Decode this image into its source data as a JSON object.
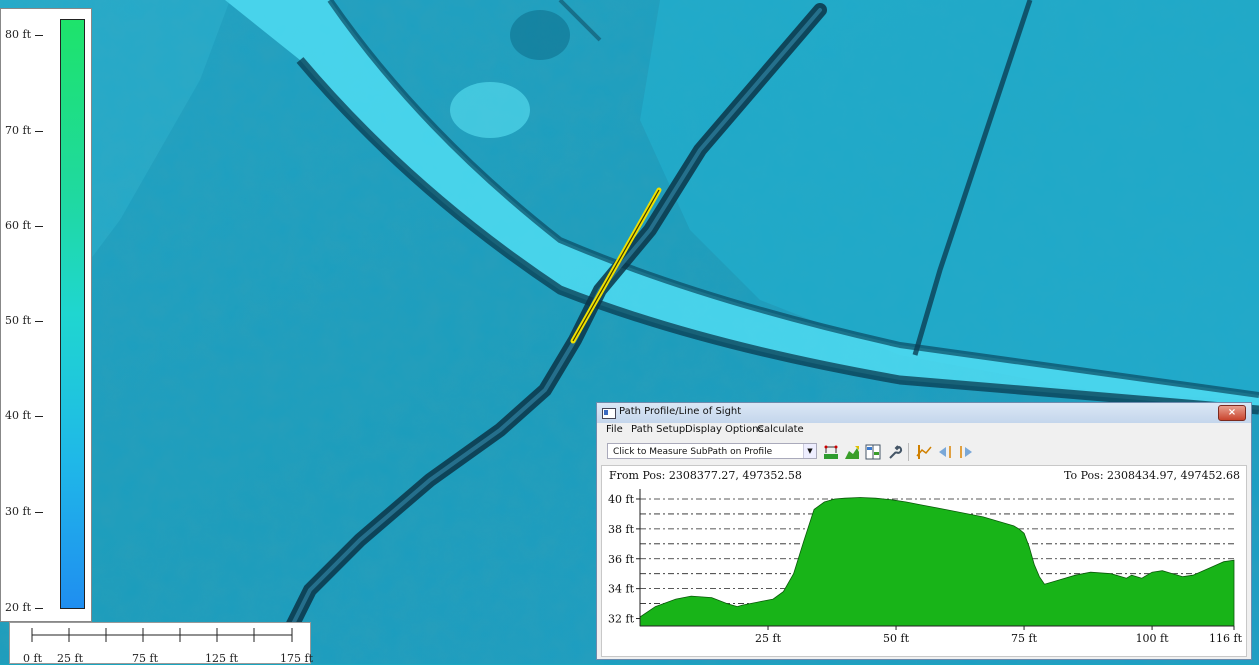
{
  "legend": {
    "ticks": [
      "80 ft",
      "70 ft",
      "60 ft",
      "50 ft",
      "40 ft",
      "30 ft",
      "20 ft"
    ]
  },
  "scale": {
    "labels": [
      "0 ft",
      "25 ft",
      "75 ft",
      "125 ft",
      "175 ft"
    ]
  },
  "window": {
    "title": "Path Profile/Line of Sight",
    "close_icon": "×",
    "menu": [
      "File",
      "Path Setup",
      "Display Options",
      "Calculate"
    ],
    "combo_value": "Click to Measure SubPath on Profile",
    "toolbar_icons": [
      "path-setup-icon",
      "terrain-icon",
      "columns-icon",
      "wrench-icon",
      "profile-marker-icon",
      "move-left-icon",
      "move-right-icon"
    ],
    "from_pos": "From Pos: 2308377.27, 497352.58",
    "to_pos": "To Pos: 2308434.97, 497452.68"
  },
  "chart_data": {
    "type": "area",
    "ylim": [
      31.5,
      40.4
    ],
    "xlim": [
      0,
      116
    ],
    "y_ticks": [
      "32 ft",
      "34 ft",
      "36 ft",
      "38 ft",
      "40 ft"
    ],
    "y_tick_values": [
      32,
      34,
      36,
      38,
      40
    ],
    "x_ticks": [
      "25 ft",
      "50 ft",
      "75 ft",
      "100 ft",
      "116 ft"
    ],
    "x_tick_values": [
      25,
      50,
      75,
      100,
      116
    ],
    "grid": true,
    "fill_color": "#18b418",
    "x": [
      0,
      3,
      7,
      10,
      14,
      17,
      19,
      20,
      23,
      26,
      28,
      30,
      32,
      34,
      36,
      38,
      40,
      43,
      46,
      49,
      52,
      55,
      58,
      61,
      64,
      67,
      70,
      73,
      74,
      75,
      76,
      77,
      78,
      79,
      80,
      82,
      85,
      88,
      92,
      95,
      96,
      98,
      100,
      102,
      104,
      106,
      108,
      110,
      112,
      114,
      116
    ],
    "values": [
      32.1,
      32.8,
      33.3,
      33.5,
      33.4,
      33.0,
      32.8,
      32.9,
      33.1,
      33.3,
      33.8,
      35.0,
      37.2,
      39.3,
      39.8,
      40.0,
      40.05,
      40.1,
      40.05,
      39.95,
      39.8,
      39.6,
      39.4,
      39.2,
      39.0,
      38.8,
      38.5,
      38.2,
      38.0,
      37.7,
      36.8,
      35.6,
      34.8,
      34.3,
      34.4,
      34.6,
      34.9,
      35.1,
      35.0,
      34.7,
      34.9,
      34.7,
      35.1,
      35.2,
      35.0,
      34.8,
      34.9,
      35.2,
      35.5,
      35.8,
      35.9
    ]
  },
  "colors": {
    "map_base": "#1aa6c0",
    "profile_line": "#f0e000"
  }
}
